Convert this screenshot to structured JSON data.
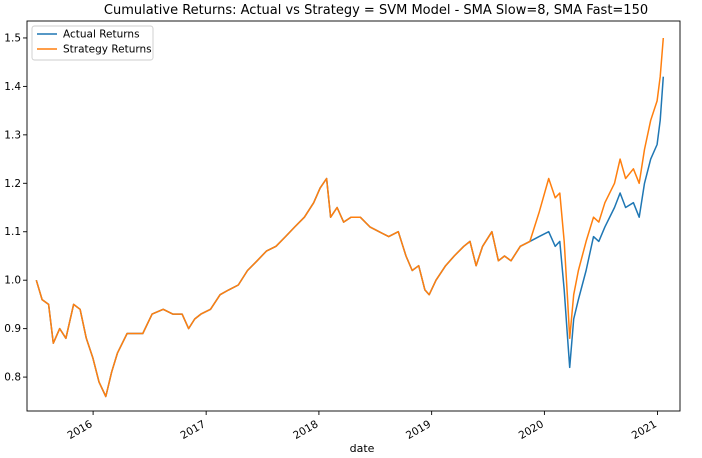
{
  "chart_data": {
    "type": "line",
    "title": "Cumulative Returns: Actual vs Strategy = SVM Model - SMA Slow=8, SMA Fast=150",
    "xlabel": "date",
    "ylabel": "",
    "x_range": [
      "2015-06-01",
      "2021-03-15"
    ],
    "ylim": [
      0.73,
      1.535
    ],
    "x_ticks": [
      {
        "date": "2016-01-01",
        "label": "2016"
      },
      {
        "date": "2017-01-01",
        "label": "2017"
      },
      {
        "date": "2018-01-01",
        "label": "2018"
      },
      {
        "date": "2019-01-01",
        "label": "2019"
      },
      {
        "date": "2020-01-01",
        "label": "2020"
      },
      {
        "date": "2021-01-01",
        "label": "2021"
      }
    ],
    "y_ticks": [
      {
        "value": 0.8,
        "label": "0.8"
      },
      {
        "value": 0.9,
        "label": "0.9"
      },
      {
        "value": 1.0,
        "label": "1.0"
      },
      {
        "value": 1.1,
        "label": "1.1"
      },
      {
        "value": 1.2,
        "label": "1.2"
      },
      {
        "value": 1.3,
        "label": "1.3"
      },
      {
        "value": 1.4,
        "label": "1.4"
      },
      {
        "value": 1.5,
        "label": "1.5"
      }
    ],
    "grid": false,
    "legend_position": "top-left",
    "series": [
      {
        "name": "Actual Returns",
        "color": "#1f77b4",
        "x": [
          "2015-07-01",
          "2015-07-20",
          "2015-08-10",
          "2015-08-25",
          "2015-09-15",
          "2015-10-05",
          "2015-10-30",
          "2015-11-20",
          "2015-12-10",
          "2015-12-31",
          "2016-01-20",
          "2016-02-11",
          "2016-03-01",
          "2016-03-20",
          "2016-04-20",
          "2016-06-10",
          "2016-07-10",
          "2016-08-15",
          "2016-09-15",
          "2016-10-15",
          "2016-11-05",
          "2016-11-25",
          "2016-12-15",
          "2017-01-15",
          "2017-02-15",
          "2017-03-15",
          "2017-04-15",
          "2017-05-15",
          "2017-06-15",
          "2017-07-15",
          "2017-08-15",
          "2017-09-15",
          "2017-10-15",
          "2017-11-15",
          "2017-12-15",
          "2018-01-05",
          "2018-01-26",
          "2018-02-08",
          "2018-03-01",
          "2018-03-22",
          "2018-04-15",
          "2018-05-15",
          "2018-06-15",
          "2018-07-15",
          "2018-08-15",
          "2018-09-15",
          "2018-10-10",
          "2018-10-30",
          "2018-11-20",
          "2018-12-10",
          "2018-12-24",
          "2019-01-15",
          "2019-02-15",
          "2019-03-15",
          "2019-04-15",
          "2019-05-05",
          "2019-05-25",
          "2019-06-15",
          "2019-07-15",
          "2019-08-05",
          "2019-08-25",
          "2019-09-15",
          "2019-10-15",
          "2019-11-15",
          "2019-12-15",
          "2020-01-15",
          "2020-02-05",
          "2020-02-20",
          "2020-03-05",
          "2020-03-16",
          "2020-03-23",
          "2020-04-05",
          "2020-04-20",
          "2020-05-15",
          "2020-06-08",
          "2020-06-25",
          "2020-07-15",
          "2020-08-15",
          "2020-09-02",
          "2020-09-20",
          "2020-10-15",
          "2020-11-03",
          "2020-11-20",
          "2020-12-10",
          "2020-12-31",
          "2021-01-10",
          "2021-01-20"
        ],
        "values": [
          1.0,
          0.96,
          0.95,
          0.87,
          0.9,
          0.88,
          0.95,
          0.94,
          0.88,
          0.84,
          0.79,
          0.76,
          0.81,
          0.85,
          0.89,
          0.89,
          0.93,
          0.94,
          0.93,
          0.93,
          0.9,
          0.92,
          0.93,
          0.94,
          0.97,
          0.98,
          0.99,
          1.02,
          1.04,
          1.06,
          1.07,
          1.09,
          1.11,
          1.13,
          1.16,
          1.19,
          1.21,
          1.13,
          1.15,
          1.12,
          1.13,
          1.13,
          1.11,
          1.1,
          1.09,
          1.1,
          1.05,
          1.02,
          1.03,
          0.98,
          0.97,
          1.0,
          1.03,
          1.05,
          1.07,
          1.08,
          1.03,
          1.07,
          1.1,
          1.04,
          1.05,
          1.04,
          1.07,
          1.08,
          1.09,
          1.1,
          1.07,
          1.08,
          0.98,
          0.88,
          0.82,
          0.92,
          0.96,
          1.02,
          1.09,
          1.08,
          1.11,
          1.15,
          1.18,
          1.15,
          1.16,
          1.13,
          1.2,
          1.25,
          1.28,
          1.33,
          1.42
        ]
      },
      {
        "name": "Strategy Returns",
        "color": "#ff7f0e",
        "x": [
          "2015-07-01",
          "2015-07-20",
          "2015-08-10",
          "2015-08-25",
          "2015-09-15",
          "2015-10-05",
          "2015-10-30",
          "2015-11-20",
          "2015-12-10",
          "2015-12-31",
          "2016-01-20",
          "2016-02-11",
          "2016-03-01",
          "2016-03-20",
          "2016-04-20",
          "2016-06-10",
          "2016-07-10",
          "2016-08-15",
          "2016-09-15",
          "2016-10-15",
          "2016-11-05",
          "2016-11-25",
          "2016-12-15",
          "2017-01-15",
          "2017-02-15",
          "2017-03-15",
          "2017-04-15",
          "2017-05-15",
          "2017-06-15",
          "2017-07-15",
          "2017-08-15",
          "2017-09-15",
          "2017-10-15",
          "2017-11-15",
          "2017-12-15",
          "2018-01-05",
          "2018-01-26",
          "2018-02-08",
          "2018-03-01",
          "2018-03-22",
          "2018-04-15",
          "2018-05-15",
          "2018-06-15",
          "2018-07-15",
          "2018-08-15",
          "2018-09-15",
          "2018-10-10",
          "2018-10-30",
          "2018-11-20",
          "2018-12-10",
          "2018-12-24",
          "2019-01-15",
          "2019-02-15",
          "2019-03-15",
          "2019-04-15",
          "2019-05-05",
          "2019-05-25",
          "2019-06-15",
          "2019-07-15",
          "2019-08-05",
          "2019-08-25",
          "2019-09-15",
          "2019-10-15",
          "2019-11-15",
          "2019-12-15",
          "2020-01-15",
          "2020-02-05",
          "2020-02-20",
          "2020-03-05",
          "2020-03-16",
          "2020-03-23",
          "2020-04-05",
          "2020-04-20",
          "2020-05-15",
          "2020-06-08",
          "2020-06-25",
          "2020-07-15",
          "2020-08-15",
          "2020-09-02",
          "2020-09-20",
          "2020-10-15",
          "2020-11-03",
          "2020-11-20",
          "2020-12-10",
          "2020-12-31",
          "2021-01-10",
          "2021-01-20"
        ],
        "values": [
          1.0,
          0.96,
          0.95,
          0.87,
          0.9,
          0.88,
          0.95,
          0.94,
          0.88,
          0.84,
          0.79,
          0.76,
          0.81,
          0.85,
          0.89,
          0.89,
          0.93,
          0.94,
          0.93,
          0.93,
          0.9,
          0.92,
          0.93,
          0.94,
          0.97,
          0.98,
          0.99,
          1.02,
          1.04,
          1.06,
          1.07,
          1.09,
          1.11,
          1.13,
          1.16,
          1.19,
          1.21,
          1.13,
          1.15,
          1.12,
          1.13,
          1.13,
          1.11,
          1.1,
          1.09,
          1.1,
          1.05,
          1.02,
          1.03,
          0.98,
          0.97,
          1.0,
          1.03,
          1.05,
          1.07,
          1.08,
          1.03,
          1.07,
          1.1,
          1.04,
          1.05,
          1.04,
          1.07,
          1.08,
          1.14,
          1.21,
          1.17,
          1.18,
          1.08,
          0.96,
          0.88,
          0.97,
          1.02,
          1.08,
          1.13,
          1.12,
          1.16,
          1.2,
          1.25,
          1.21,
          1.23,
          1.2,
          1.27,
          1.33,
          1.37,
          1.42,
          1.5
        ]
      }
    ]
  }
}
